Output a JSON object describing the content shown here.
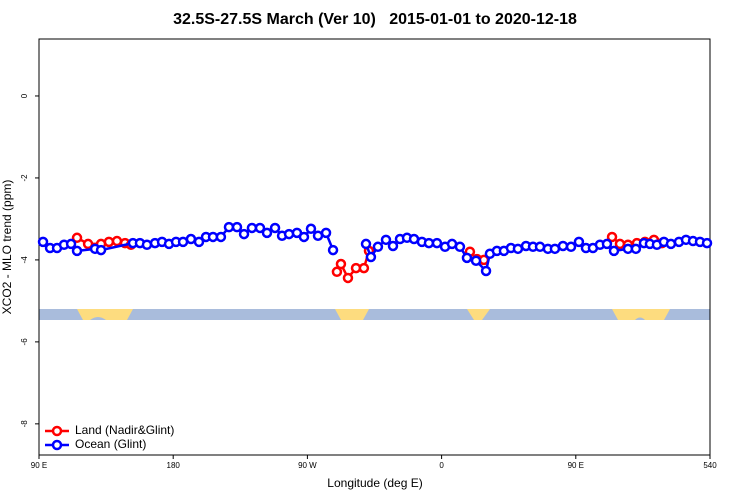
{
  "chart_data": {
    "type": "line",
    "title": "32.5S-27.5S March (Ver 10)   2015-01-01 to 2020-12-18",
    "xlabel": "Longitude (deg E)",
    "ylabel": "XCO2 - MLO trend (ppm)",
    "xlim": [
      90,
      540
    ],
    "ylim": [
      -8.76,
      1.39
    ],
    "xticks": [
      {
        "value": 90,
        "label": "90 E"
      },
      180,
      {
        "value": 270,
        "label": "90 W"
      },
      {
        "value": 360,
        "label": "0"
      },
      {
        "value": 450,
        "label": "90 E"
      },
      540
    ],
    "yticks": [
      0,
      -2,
      -4,
      -6,
      -8
    ],
    "legend": "bottomleft",
    "series": [
      {
        "name": "Land (Nadir&Glint)",
        "color": "#ff0000",
        "x": [
          115.5,
          122.9,
          131.6,
          136.9,
          142.3,
          147.7,
          151.7,
          null,
          289.8,
          292.5,
          297.2,
          302.6,
          307.9,
          311.3,
          null,
          379.0,
          383.7,
          388.4,
          null,
          474.3,
          479.6,
          485.0,
          491.0,
          496.4,
          502.4,
          507.8
        ],
        "values": [
          -3.46,
          -3.61,
          -3.61,
          -3.56,
          -3.54,
          -3.59,
          -3.63,
          null,
          -4.29,
          -4.1,
          -4.44,
          -4.2,
          -4.2,
          -3.78,
          null,
          -3.8,
          -3.98,
          -4.0,
          null,
          -3.44,
          -3.61,
          -3.63,
          -3.59,
          -3.56,
          -3.51,
          -3.59
        ]
      },
      {
        "name": "Ocean (Glint)",
        "color": "#0000ff",
        "x": [
          92.7,
          97.4,
          102.1,
          106.8,
          111.5,
          115.5,
          127.6,
          131.6,
          153.0,
          157.7,
          162.4,
          167.8,
          172.5,
          177.2,
          181.9,
          186.6,
          191.9,
          197.3,
          202.0,
          206.7,
          212.0,
          217.4,
          222.8,
          227.5,
          232.8,
          238.2,
          242.9,
          248.3,
          253.0,
          257.7,
          263.0,
          267.7,
          272.4,
          277.1,
          282.5,
          287.2,
          null,
          309.3,
          312.6,
          317.3,
          322.7,
          327.4,
          332.1,
          336.8,
          341.5,
          346.8,
          351.5,
          356.9,
          362.3,
          367.0,
          372.3,
          377.0,
          383.1,
          389.8,
          392.4,
          397.1,
          401.8,
          406.5,
          411.2,
          416.6,
          421.3,
          426.0,
          431.3,
          436.0,
          441.4,
          446.8,
          452.1,
          456.8,
          461.5,
          466.2,
          470.9,
          475.6,
          485.0,
          490.3,
          495.7,
          499.7,
          504.4,
          509.1,
          513.8,
          519.2,
          523.9,
          528.6,
          533.3,
          538.0
        ],
        "values": [
          -3.56,
          -3.71,
          -3.71,
          -3.63,
          -3.61,
          -3.78,
          -3.73,
          -3.76,
          -3.59,
          -3.59,
          -3.63,
          -3.59,
          -3.56,
          -3.61,
          -3.56,
          -3.56,
          -3.49,
          -3.56,
          -3.44,
          -3.44,
          -3.44,
          -3.2,
          -3.2,
          -3.37,
          -3.22,
          -3.22,
          -3.34,
          -3.22,
          -3.41,
          -3.37,
          -3.34,
          -3.44,
          -3.24,
          -3.41,
          -3.34,
          -3.76,
          null,
          -3.61,
          -3.93,
          -3.68,
          -3.51,
          -3.66,
          -3.49,
          -3.46,
          -3.49,
          -3.56,
          -3.59,
          -3.59,
          -3.68,
          -3.61,
          -3.68,
          -3.95,
          -4.02,
          -4.27,
          -3.85,
          -3.78,
          -3.78,
          -3.71,
          -3.73,
          -3.66,
          -3.68,
          -3.68,
          -3.73,
          -3.73,
          -3.66,
          -3.68,
          -3.56,
          -3.71,
          -3.71,
          -3.63,
          -3.61,
          -3.78,
          -3.73,
          -3.73,
          -3.59,
          -3.61,
          -3.63,
          -3.56,
          -3.61,
          -3.56,
          -3.51,
          -3.54,
          -3.56,
          -3.59
        ]
      }
    ]
  }
}
